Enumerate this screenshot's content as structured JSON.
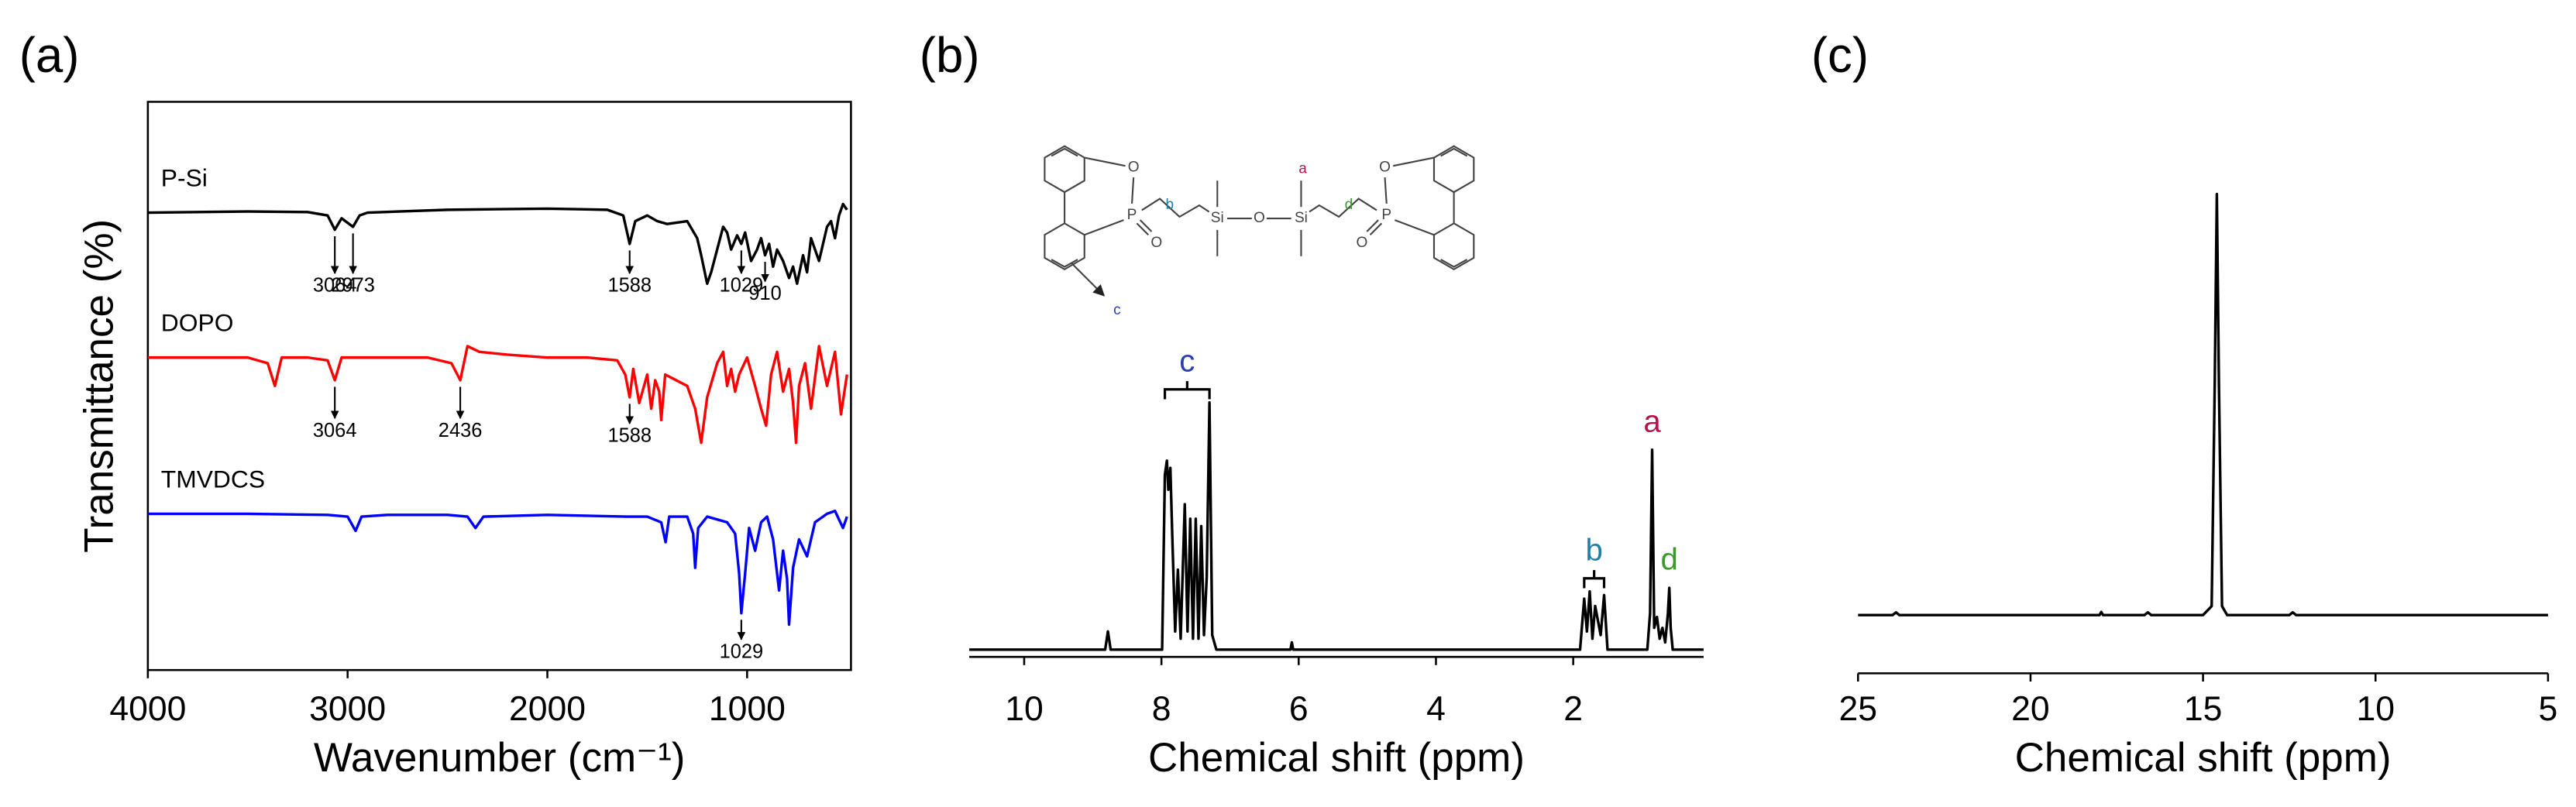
{
  "chart_data": [
    {
      "type": "line",
      "panel_label": "(a)",
      "x_label": "Wavenumber (cm⁻¹)",
      "y_label": "Transmittance (%)",
      "frame": "box",
      "xlim": [
        4000,
        480
      ],
      "xticks": [
        4000,
        3000,
        2000,
        1000
      ],
      "ylim": [
        0,
        100
      ],
      "series": [
        {
          "name": "P-Si",
          "color": "#000000",
          "x": [
            4000,
            3500,
            3200,
            3100,
            3064,
            3030,
            2973,
            2940,
            2900,
            2500,
            2000,
            1700,
            1620,
            1588,
            1560,
            1500,
            1450,
            1400,
            1300,
            1250,
            1230,
            1200,
            1180,
            1150,
            1120,
            1100,
            1080,
            1050,
            1029,
            1010,
            980,
            950,
            930,
            910,
            890,
            870,
            850,
            820,
            800,
            790,
            770,
            750,
            720,
            700,
            680,
            640,
            600,
            580,
            560,
            540,
            520,
            500
          ],
          "values": [
            80.5,
            80.7,
            80.6,
            80,
            77.5,
            79.5,
            78,
            80,
            80.5,
            81,
            81.2,
            81,
            80,
            75,
            79,
            80,
            79,
            78.5,
            79,
            76,
            73,
            68,
            70,
            74,
            78,
            77,
            74,
            76.5,
            75,
            77,
            72,
            74,
            76,
            73,
            75,
            71,
            74,
            72,
            70,
            69,
            71,
            68,
            73,
            70,
            76,
            72,
            78,
            79,
            76,
            80,
            82,
            81
          ],
          "annotations": [
            {
              "text": "3064",
              "x": 3064
            },
            {
              "text": "2973",
              "x": 2973
            },
            {
              "text": "1588",
              "x": 1588
            },
            {
              "text": "1029",
              "x": 1029
            },
            {
              "text": "910",
              "x": 910
            }
          ]
        },
        {
          "name": "DOPO",
          "color": "#ff0000",
          "x": [
            4000,
            3500,
            3400,
            3364,
            3330,
            3200,
            3100,
            3064,
            3030,
            2800,
            2600,
            2480,
            2436,
            2400,
            2340,
            2200,
            2000,
            1800,
            1650,
            1610,
            1588,
            1570,
            1540,
            1500,
            1480,
            1460,
            1440,
            1430,
            1410,
            1300,
            1260,
            1230,
            1200,
            1150,
            1120,
            1100,
            1080,
            1060,
            1040,
            1000,
            960,
            930,
            905,
            880,
            850,
            820,
            790,
            770,
            755,
            740,
            710,
            680,
            640,
            600,
            560,
            530,
            500
          ],
          "values": [
            55,
            55,
            54,
            50,
            55,
            55,
            54.5,
            51,
            55,
            55,
            55,
            54,
            51,
            57,
            56,
            55.5,
            55,
            55,
            54.5,
            52,
            48,
            53,
            47,
            52,
            46,
            51,
            49,
            44,
            52,
            50,
            46,
            40,
            48,
            54,
            56,
            50,
            53,
            49,
            52,
            55,
            50,
            46,
            43,
            52,
            56,
            49,
            53,
            47,
            40,
            50,
            54,
            46,
            57,
            50,
            56,
            45,
            52
          ],
          "annotations": [
            {
              "text": "3064",
              "x": 3064
            },
            {
              "text": "2436",
              "x": 2436
            },
            {
              "text": "1588",
              "x": 1588
            }
          ]
        },
        {
          "name": "TMVDCS",
          "color": "#0000ff",
          "x": [
            4000,
            3500,
            3100,
            3000,
            2960,
            2930,
            2800,
            2500,
            2400,
            2360,
            2320,
            2000,
            1600,
            1500,
            1430,
            1408,
            1390,
            1300,
            1270,
            1260,
            1245,
            1200,
            1100,
            1060,
            1040,
            1029,
            1010,
            990,
            960,
            930,
            900,
            870,
            840,
            820,
            800,
            790,
            770,
            740,
            700,
            660,
            600,
            560,
            520,
            500
          ],
          "values": [
            27.5,
            27.5,
            27.3,
            27,
            24.5,
            27,
            27.3,
            27.3,
            27,
            25,
            27,
            27.3,
            27,
            27,
            26,
            22.5,
            27,
            27,
            24,
            18,
            25,
            27,
            26,
            24,
            17,
            10,
            17,
            25,
            21,
            26,
            27,
            23,
            14,
            21,
            16,
            8,
            18,
            23,
            20,
            26,
            27.5,
            28,
            25,
            27
          ],
          "annotations": [
            {
              "text": "1029",
              "x": 1029
            }
          ]
        }
      ]
    },
    {
      "type": "line",
      "panel_label": "(b)",
      "x_label": "Chemical shift (ppm)",
      "frame": "bottom",
      "xlim": [
        10.8,
        0.1
      ],
      "xticks": [
        10,
        8,
        6,
        4,
        2
      ],
      "ylim": [
        -2,
        120
      ],
      "series": [
        {
          "color": "#000000",
          "x": [
            10.8,
            8.82,
            8.78,
            8.74,
            7.99,
            7.95,
            7.92,
            7.9,
            7.87,
            7.84,
            7.8,
            7.76,
            7.72,
            7.66,
            7.62,
            7.58,
            7.54,
            7.5,
            7.46,
            7.42,
            7.38,
            7.34,
            7.3,
            7.26,
            7.2,
            6.12,
            6.1,
            6.08,
            1.9,
            1.84,
            1.8,
            1.76,
            1.72,
            1.68,
            1.6,
            1.55,
            1.5,
            0.92,
            0.88,
            0.85,
            0.82,
            0.78,
            0.74,
            0.7,
            0.66,
            0.62,
            0.6,
            0.58,
            0.55,
            0.1
          ],
          "values": [
            0,
            0,
            5,
            0,
            0,
            48,
            52,
            44,
            50,
            30,
            5,
            22,
            3,
            40,
            5,
            36,
            3,
            36,
            3,
            34,
            4,
            20,
            68,
            4,
            0,
            0,
            2,
            0,
            0,
            14,
            5,
            16,
            3,
            12,
            4,
            15,
            0,
            0,
            10,
            55,
            6,
            9,
            3,
            6,
            2,
            10,
            17,
            6,
            0,
            0
          ]
        }
      ],
      "annotations": [
        {
          "text": "c",
          "x": [
            7.95,
            7.3
          ],
          "color": "#2a3fb0"
        },
        {
          "text": "b",
          "x": [
            1.84,
            1.55
          ],
          "color": "#1f7fa6"
        },
        {
          "text": "a",
          "x": 0.85,
          "color": "#b5134b"
        },
        {
          "text": "d",
          "x": 0.6,
          "color": "#3a9a2a"
        }
      ],
      "structure_labels": [
        {
          "text": "P",
          "color": "#444444"
        },
        {
          "text": "O",
          "color": "#444444"
        },
        {
          "text": "O",
          "color": "#444444"
        },
        {
          "text": "b",
          "color": "#1f7fa6"
        },
        {
          "text": "Si",
          "color": "#444444"
        },
        {
          "text": "O",
          "color": "#444444"
        },
        {
          "text": "Si",
          "color": "#444444"
        },
        {
          "text": "a",
          "color": "#b5134b"
        },
        {
          "text": "d",
          "color": "#3a9a2a"
        },
        {
          "text": "P",
          "color": "#444444"
        },
        {
          "text": "O",
          "color": "#444444"
        },
        {
          "text": "O",
          "color": "#444444"
        },
        {
          "text": "c",
          "color": "#2a3fb0"
        }
      ]
    },
    {
      "type": "line",
      "panel_label": "(c)",
      "x_label": "Chemical shift (ppm)",
      "frame": "bottom",
      "xlim": [
        25,
        5
      ],
      "xticks": [
        25,
        20,
        15,
        10,
        5
      ],
      "ylim": [
        -10,
        100
      ],
      "series": [
        {
          "color": "#000000",
          "x": [
            25,
            24,
            23.9,
            23.8,
            20,
            18,
            17.95,
            17.9,
            16.7,
            16.6,
            16.5,
            15,
            14.75,
            14.66,
            14.6,
            14.54,
            14.45,
            14.3,
            12.5,
            12.4,
            12.3,
            11,
            5
          ],
          "values": [
            3,
            3,
            3.6,
            3,
            3,
            3,
            3.7,
            3,
            3,
            3.6,
            3,
            3,
            5,
            55,
            97,
            55,
            5,
            3,
            3,
            3.6,
            3,
            3,
            3
          ]
        }
      ]
    }
  ]
}
